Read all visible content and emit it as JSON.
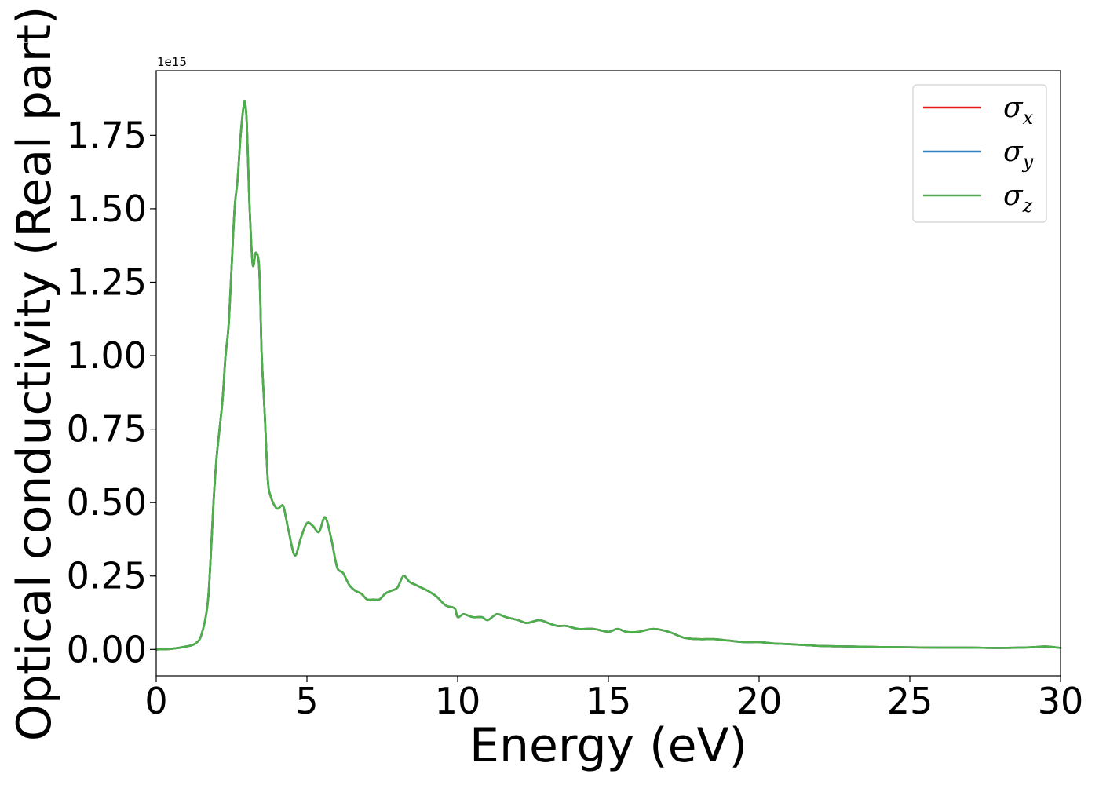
{
  "chart_data": {
    "type": "line",
    "title": "",
    "xlabel": "Energy (eV)",
    "ylabel": "Optical conductivity (Real part)",
    "y_offset_label": "1e15",
    "xlim": [
      0,
      30
    ],
    "ylim": [
      -0.09,
      1.97
    ],
    "x_ticks": [
      0,
      5,
      10,
      15,
      20,
      25,
      30
    ],
    "x_tick_labels": [
      "0",
      "5",
      "10",
      "15",
      "20",
      "25",
      "30"
    ],
    "y_ticks": [
      0.0,
      0.25,
      0.5,
      0.75,
      1.0,
      1.25,
      1.5,
      1.75
    ],
    "y_tick_labels": [
      "0.00",
      "0.25",
      "0.50",
      "0.75",
      "1.00",
      "1.25",
      "1.50",
      "1.75"
    ],
    "grid": false,
    "legend_position": "top-right",
    "series": [
      {
        "name": "σx",
        "legend_base": "σ",
        "legend_sub": "x",
        "color": "#e41a1c"
      },
      {
        "name": "σy",
        "legend_base": "σ",
        "legend_sub": "y",
        "color": "#377eb8"
      },
      {
        "name": "σz",
        "legend_base": "σ",
        "legend_sub": "z",
        "color": "#4daf4a"
      }
    ],
    "x": [
      0,
      0.5,
      1.0,
      1.3,
      1.5,
      1.7,
      1.8,
      1.9,
      2.0,
      2.1,
      2.2,
      2.3,
      2.4,
      2.5,
      2.6,
      2.7,
      2.8,
      2.9,
      2.95,
      3.0,
      3.05,
      3.1,
      3.2,
      3.3,
      3.4,
      3.45,
      3.5,
      3.6,
      3.7,
      3.8,
      4.0,
      4.2,
      4.3,
      4.4,
      4.6,
      4.8,
      5.0,
      5.2,
      5.4,
      5.6,
      5.8,
      6.0,
      6.2,
      6.4,
      6.6,
      6.8,
      7.0,
      7.2,
      7.4,
      7.6,
      7.8,
      8.0,
      8.2,
      8.4,
      8.6,
      8.8,
      9.0,
      9.3,
      9.6,
      9.9,
      10.0,
      10.2,
      10.5,
      10.8,
      11.0,
      11.3,
      11.6,
      12.0,
      12.3,
      12.7,
      13.0,
      13.3,
      13.6,
      14.0,
      14.5,
      15.0,
      15.3,
      15.6,
      16.0,
      16.5,
      17.0,
      17.5,
      18.0,
      18.5,
      19.0,
      19.5,
      20.0,
      20.5,
      21.0,
      22.0,
      23.0,
      24.0,
      25.0,
      26.0,
      27.0,
      28.0,
      29.0,
      29.5,
      30.0
    ],
    "values": [
      0.0,
      0.002,
      0.01,
      0.02,
      0.05,
      0.15,
      0.3,
      0.5,
      0.65,
      0.75,
      0.85,
      1.0,
      1.1,
      1.3,
      1.5,
      1.6,
      1.75,
      1.85,
      1.86,
      1.8,
      1.65,
      1.5,
      1.31,
      1.35,
      1.32,
      1.2,
      1.0,
      0.8,
      0.58,
      0.52,
      0.48,
      0.49,
      0.45,
      0.4,
      0.32,
      0.38,
      0.43,
      0.42,
      0.4,
      0.45,
      0.38,
      0.28,
      0.26,
      0.22,
      0.2,
      0.19,
      0.17,
      0.17,
      0.17,
      0.19,
      0.2,
      0.21,
      0.25,
      0.23,
      0.22,
      0.21,
      0.2,
      0.18,
      0.15,
      0.14,
      0.11,
      0.12,
      0.11,
      0.11,
      0.1,
      0.12,
      0.11,
      0.1,
      0.09,
      0.1,
      0.09,
      0.08,
      0.08,
      0.07,
      0.07,
      0.06,
      0.07,
      0.06,
      0.06,
      0.07,
      0.06,
      0.04,
      0.035,
      0.035,
      0.03,
      0.025,
      0.025,
      0.02,
      0.018,
      0.012,
      0.01,
      0.008,
      0.007,
      0.006,
      0.006,
      0.005,
      0.007,
      0.01,
      0.005
    ]
  }
}
